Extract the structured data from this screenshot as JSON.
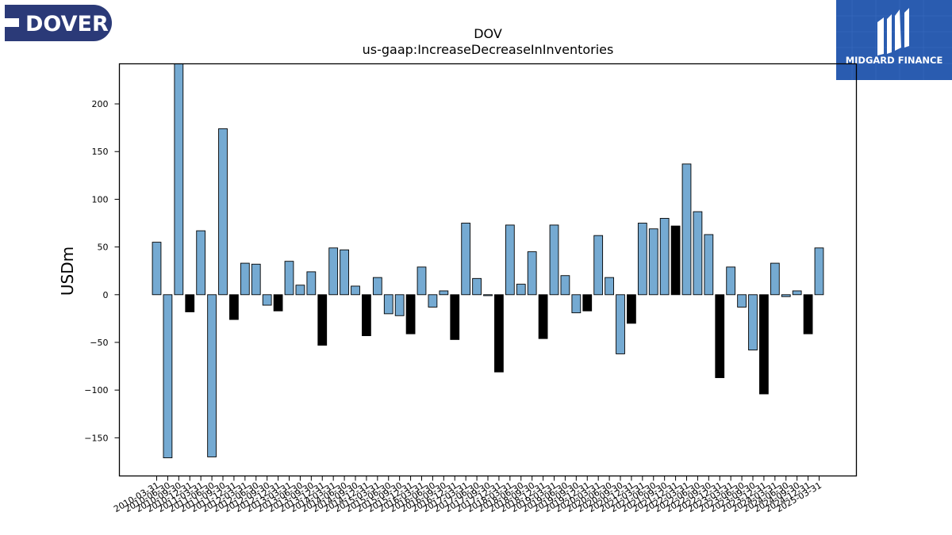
{
  "logos": {
    "left": {
      "text": "DOVER"
    },
    "right": {
      "text": "MIDGARD FINANCE"
    }
  },
  "colors": {
    "positive": "#75aad2",
    "negative": "#000000",
    "edge": "#000000"
  },
  "chart_data": {
    "type": "bar",
    "title": "DOV",
    "subtitle": "us-gaap:IncreaseDecreaseInInventories",
    "ylabel": "USDm",
    "xlabel": "",
    "ylim": [
      -190,
      242
    ],
    "yticks": [
      -150,
      -100,
      -50,
      0,
      50,
      100,
      150,
      200
    ],
    "grid": false,
    "categories": [
      "2010-03-31",
      "2010-06-30",
      "2010-09-30",
      "2010-12-31",
      "2011-03-31",
      "2011-06-30",
      "2011-09-30",
      "2011-12-31",
      "2012-03-31",
      "2012-06-30",
      "2012-09-30",
      "2012-12-31",
      "2013-03-31",
      "2013-06-30",
      "2013-09-30",
      "2013-12-31",
      "2014-03-31",
      "2014-06-30",
      "2014-09-30",
      "2014-12-31",
      "2015-03-31",
      "2015-06-30",
      "2015-09-30",
      "2015-12-31",
      "2016-03-31",
      "2016-06-30",
      "2016-09-30",
      "2016-12-31",
      "2017-03-31",
      "2017-06-30",
      "2017-09-30",
      "2017-12-31",
      "2018-03-31",
      "2018-06-30",
      "2018-09-30",
      "2018-12-31",
      "2019-03-31",
      "2019-06-30",
      "2019-09-30",
      "2019-12-31",
      "2020-03-31",
      "2020-06-30",
      "2020-09-30",
      "2020-12-31",
      "2021-03-31",
      "2021-06-30",
      "2021-09-30",
      "2021-12-31",
      "2022-03-31",
      "2022-06-30",
      "2022-09-30",
      "2022-12-31",
      "2023-03-31",
      "2023-06-30",
      "2023-09-30",
      "2023-12-31",
      "2024-03-31",
      "2024-06-30",
      "2024-09-30",
      "2024-12-31",
      "2025-03-31"
    ],
    "values": [
      55,
      -171,
      242,
      -18,
      67,
      -170,
      174,
      -26,
      33,
      32,
      -11,
      -17,
      35,
      10,
      24,
      -53,
      49,
      47,
      9,
      -43,
      18,
      -20,
      -22,
      -41,
      29,
      -13,
      4,
      -47,
      75,
      17,
      -1,
      -81,
      73,
      11,
      45,
      -46,
      73,
      20,
      -19,
      -17,
      62,
      18,
      -62,
      -30,
      75,
      69,
      80,
      72,
      137,
      87,
      63,
      -87,
      29,
      -13,
      -58,
      -104,
      33,
      -2,
      4,
      -41,
      49
    ],
    "negative_style": [
      false,
      false,
      false,
      true,
      false,
      false,
      false,
      true,
      false,
      false,
      false,
      true,
      false,
      false,
      false,
      true,
      false,
      false,
      false,
      true,
      false,
      false,
      false,
      true,
      false,
      false,
      false,
      true,
      false,
      false,
      false,
      true,
      false,
      false,
      false,
      true,
      false,
      false,
      false,
      true,
      false,
      false,
      false,
      true,
      false,
      false,
      false,
      true,
      false,
      false,
      false,
      true,
      false,
      false,
      false,
      true,
      false,
      false,
      false,
      true,
      false
    ]
  }
}
